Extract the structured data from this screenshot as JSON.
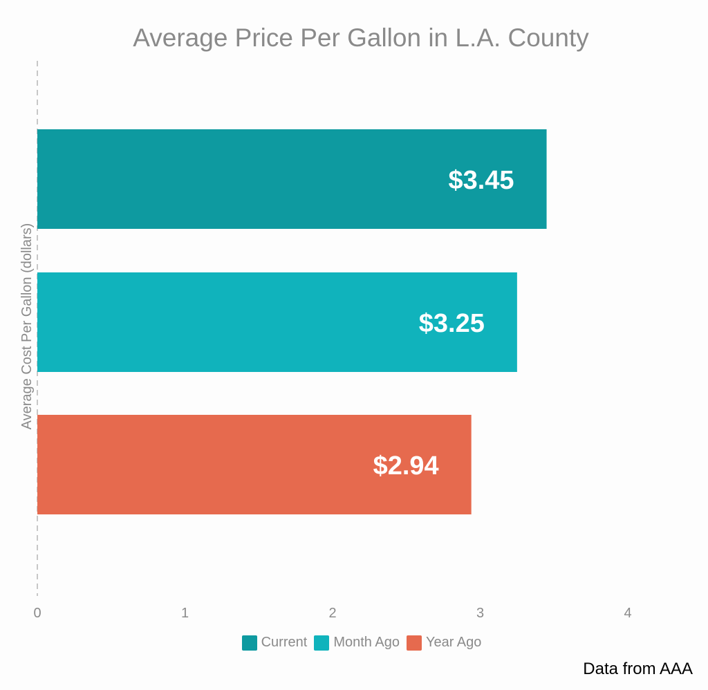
{
  "chart_data": {
    "type": "bar",
    "orientation": "horizontal",
    "title": "Average Price Per Gallon in L.A. County",
    "ylabel": "Average Cost Per Gallon (dollars)",
    "xlabel": "",
    "xlim": [
      0,
      4
    ],
    "x_ticks": [
      "0",
      "1",
      "2",
      "3",
      "4"
    ],
    "grid": false,
    "legend_position": "bottom",
    "series": [
      {
        "name": "Current",
        "value": 3.45,
        "label": "$3.45",
        "color": "#0e9aa0"
      },
      {
        "name": "Month Ago",
        "value": 3.25,
        "label": "$3.25",
        "color": "#10b3bc"
      },
      {
        "name": "Year Ago",
        "value": 2.94,
        "label": "$2.94",
        "color": "#e66a4e"
      }
    ]
  },
  "source": "Data from AAA"
}
